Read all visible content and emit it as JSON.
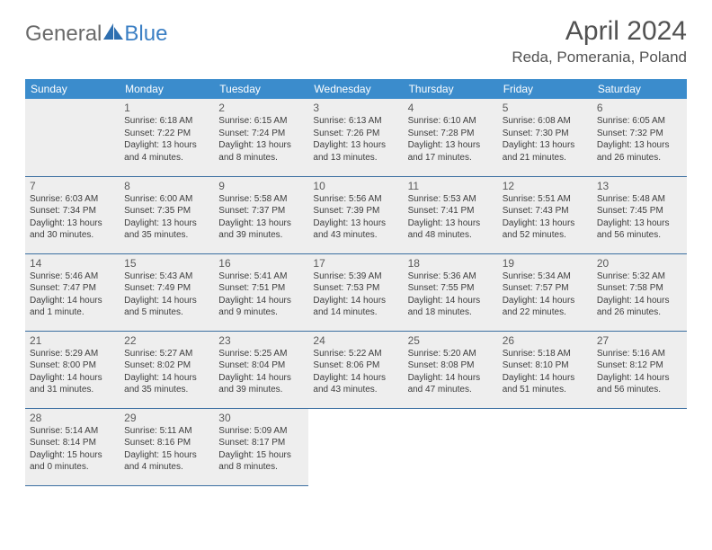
{
  "logo": {
    "part1": "General",
    "part2": "Blue"
  },
  "title": "April 2024",
  "location": "Reda, Pomerania, Poland",
  "colors": {
    "header_bg": "#3b8ccc",
    "header_text": "#ffffff",
    "cell_border": "#3b6fa1",
    "shaded_bg": "#eeeeee",
    "text": "#3d3d3d",
    "logo_gray": "#6a6a6a",
    "logo_blue": "#3b7fc4"
  },
  "weekdays": [
    "Sunday",
    "Monday",
    "Tuesday",
    "Wednesday",
    "Thursday",
    "Friday",
    "Saturday"
  ],
  "weeks": [
    [
      {
        "day": "",
        "lines": [],
        "shaded": true
      },
      {
        "day": "1",
        "lines": [
          "Sunrise: 6:18 AM",
          "Sunset: 7:22 PM",
          "Daylight: 13 hours and 4 minutes."
        ],
        "shaded": true
      },
      {
        "day": "2",
        "lines": [
          "Sunrise: 6:15 AM",
          "Sunset: 7:24 PM",
          "Daylight: 13 hours and 8 minutes."
        ],
        "shaded": true
      },
      {
        "day": "3",
        "lines": [
          "Sunrise: 6:13 AM",
          "Sunset: 7:26 PM",
          "Daylight: 13 hours and 13 minutes."
        ],
        "shaded": true
      },
      {
        "day": "4",
        "lines": [
          "Sunrise: 6:10 AM",
          "Sunset: 7:28 PM",
          "Daylight: 13 hours and 17 minutes."
        ],
        "shaded": true
      },
      {
        "day": "5",
        "lines": [
          "Sunrise: 6:08 AM",
          "Sunset: 7:30 PM",
          "Daylight: 13 hours and 21 minutes."
        ],
        "shaded": true
      },
      {
        "day": "6",
        "lines": [
          "Sunrise: 6:05 AM",
          "Sunset: 7:32 PM",
          "Daylight: 13 hours and 26 minutes."
        ],
        "shaded": true
      }
    ],
    [
      {
        "day": "7",
        "lines": [
          "Sunrise: 6:03 AM",
          "Sunset: 7:34 PM",
          "Daylight: 13 hours and 30 minutes."
        ],
        "shaded": true
      },
      {
        "day": "8",
        "lines": [
          "Sunrise: 6:00 AM",
          "Sunset: 7:35 PM",
          "Daylight: 13 hours and 35 minutes."
        ],
        "shaded": true
      },
      {
        "day": "9",
        "lines": [
          "Sunrise: 5:58 AM",
          "Sunset: 7:37 PM",
          "Daylight: 13 hours and 39 minutes."
        ],
        "shaded": true
      },
      {
        "day": "10",
        "lines": [
          "Sunrise: 5:56 AM",
          "Sunset: 7:39 PM",
          "Daylight: 13 hours and 43 minutes."
        ],
        "shaded": true
      },
      {
        "day": "11",
        "lines": [
          "Sunrise: 5:53 AM",
          "Sunset: 7:41 PM",
          "Daylight: 13 hours and 48 minutes."
        ],
        "shaded": true
      },
      {
        "day": "12",
        "lines": [
          "Sunrise: 5:51 AM",
          "Sunset: 7:43 PM",
          "Daylight: 13 hours and 52 minutes."
        ],
        "shaded": true
      },
      {
        "day": "13",
        "lines": [
          "Sunrise: 5:48 AM",
          "Sunset: 7:45 PM",
          "Daylight: 13 hours and 56 minutes."
        ],
        "shaded": true
      }
    ],
    [
      {
        "day": "14",
        "lines": [
          "Sunrise: 5:46 AM",
          "Sunset: 7:47 PM",
          "Daylight: 14 hours and 1 minute."
        ],
        "shaded": true
      },
      {
        "day": "15",
        "lines": [
          "Sunrise: 5:43 AM",
          "Sunset: 7:49 PM",
          "Daylight: 14 hours and 5 minutes."
        ],
        "shaded": true
      },
      {
        "day": "16",
        "lines": [
          "Sunrise: 5:41 AM",
          "Sunset: 7:51 PM",
          "Daylight: 14 hours and 9 minutes."
        ],
        "shaded": true
      },
      {
        "day": "17",
        "lines": [
          "Sunrise: 5:39 AM",
          "Sunset: 7:53 PM",
          "Daylight: 14 hours and 14 minutes."
        ],
        "shaded": true
      },
      {
        "day": "18",
        "lines": [
          "Sunrise: 5:36 AM",
          "Sunset: 7:55 PM",
          "Daylight: 14 hours and 18 minutes."
        ],
        "shaded": true
      },
      {
        "day": "19",
        "lines": [
          "Sunrise: 5:34 AM",
          "Sunset: 7:57 PM",
          "Daylight: 14 hours and 22 minutes."
        ],
        "shaded": true
      },
      {
        "day": "20",
        "lines": [
          "Sunrise: 5:32 AM",
          "Sunset: 7:58 PM",
          "Daylight: 14 hours and 26 minutes."
        ],
        "shaded": true
      }
    ],
    [
      {
        "day": "21",
        "lines": [
          "Sunrise: 5:29 AM",
          "Sunset: 8:00 PM",
          "Daylight: 14 hours and 31 minutes."
        ],
        "shaded": true
      },
      {
        "day": "22",
        "lines": [
          "Sunrise: 5:27 AM",
          "Sunset: 8:02 PM",
          "Daylight: 14 hours and 35 minutes."
        ],
        "shaded": true
      },
      {
        "day": "23",
        "lines": [
          "Sunrise: 5:25 AM",
          "Sunset: 8:04 PM",
          "Daylight: 14 hours and 39 minutes."
        ],
        "shaded": true
      },
      {
        "day": "24",
        "lines": [
          "Sunrise: 5:22 AM",
          "Sunset: 8:06 PM",
          "Daylight: 14 hours and 43 minutes."
        ],
        "shaded": true
      },
      {
        "day": "25",
        "lines": [
          "Sunrise: 5:20 AM",
          "Sunset: 8:08 PM",
          "Daylight: 14 hours and 47 minutes."
        ],
        "shaded": true
      },
      {
        "day": "26",
        "lines": [
          "Sunrise: 5:18 AM",
          "Sunset: 8:10 PM",
          "Daylight: 14 hours and 51 minutes."
        ],
        "shaded": true
      },
      {
        "day": "27",
        "lines": [
          "Sunrise: 5:16 AM",
          "Sunset: 8:12 PM",
          "Daylight: 14 hours and 56 minutes."
        ],
        "shaded": true
      }
    ],
    [
      {
        "day": "28",
        "lines": [
          "Sunrise: 5:14 AM",
          "Sunset: 8:14 PM",
          "Daylight: 15 hours and 0 minutes."
        ],
        "shaded": true
      },
      {
        "day": "29",
        "lines": [
          "Sunrise: 5:11 AM",
          "Sunset: 8:16 PM",
          "Daylight: 15 hours and 4 minutes."
        ],
        "shaded": true
      },
      {
        "day": "30",
        "lines": [
          "Sunrise: 5:09 AM",
          "Sunset: 8:17 PM",
          "Daylight: 15 hours and 8 minutes."
        ],
        "shaded": true
      },
      {
        "day": "",
        "lines": [],
        "shaded": false,
        "empty": true
      },
      {
        "day": "",
        "lines": [],
        "shaded": false,
        "empty": true
      },
      {
        "day": "",
        "lines": [],
        "shaded": false,
        "empty": true
      },
      {
        "day": "",
        "lines": [],
        "shaded": false,
        "empty": true
      }
    ]
  ]
}
